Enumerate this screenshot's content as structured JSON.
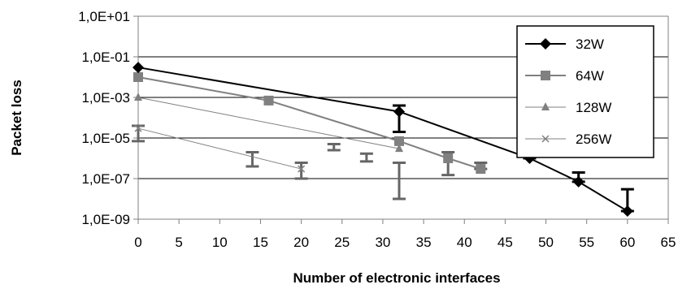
{
  "chart_data": {
    "type": "line",
    "title": "",
    "xlabel": "Number of electronic interfaces",
    "ylabel": "Packet loss",
    "xlim": [
      0,
      65
    ],
    "ylim": [
      1e-09,
      10
    ],
    "y_scale": "log",
    "grid": "horizontal",
    "legend_position": "top-right",
    "x_ticks": [
      "0",
      "5",
      "10",
      "15",
      "20",
      "25",
      "30",
      "35",
      "40",
      "45",
      "50",
      "55",
      "60",
      "65"
    ],
    "y_ticks": [
      "1,0E-09",
      "1,0E-07",
      "1,0E-05",
      "1,0E-03",
      "1,0E-01",
      "1,0E+01"
    ],
    "series": [
      {
        "name": "32W",
        "color": "#000000",
        "marker": "diamond",
        "x": [
          0,
          32,
          48,
          54,
          60
        ],
        "y": [
          0.03,
          0.0002,
          1e-06,
          7e-08,
          2.5e-09
        ],
        "err_low": [
          null,
          2e-05,
          null,
          null,
          null
        ],
        "err_high": [
          null,
          0.0004,
          2e-06,
          2e-07,
          3e-08
        ]
      },
      {
        "name": "64W",
        "color": "#808080",
        "marker": "square",
        "x": [
          0,
          16,
          32,
          38,
          42
        ],
        "y": [
          0.01,
          0.0007,
          7e-06,
          1e-06,
          3e-07
        ],
        "err_low": [
          null,
          null,
          null,
          1.5e-07,
          null
        ],
        "err_high": [
          null,
          null,
          null,
          2e-06,
          6e-07
        ]
      },
      {
        "name": "128W",
        "color": "#808080",
        "marker": "triangle",
        "x": [
          0,
          32
        ],
        "y": [
          0.001,
          3e-06
        ],
        "err_low": [
          null,
          1e-08
        ],
        "err_high": [
          null,
          6e-07
        ]
      },
      {
        "name": "256W",
        "color": "#808080",
        "marker": "x",
        "x": [
          0,
          20
        ],
        "y": [
          3e-05,
          3e-07
        ],
        "err_low": [
          7e-06,
          1e-07
        ],
        "err_high": [
          4e-05,
          6e-07
        ]
      }
    ],
    "extra_error_bars": [
      {
        "x": 14,
        "low": 4e-07,
        "high": 2e-06
      },
      {
        "x": 24,
        "low": 2.5e-06,
        "high": 5e-06
      },
      {
        "x": 28,
        "low": 7e-07,
        "high": 1.7e-06
      }
    ]
  }
}
